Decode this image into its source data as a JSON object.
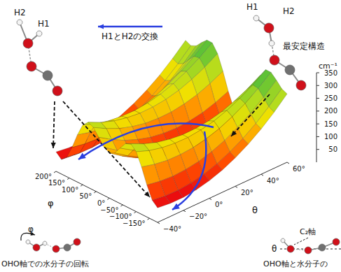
{
  "chart_data": {
    "type": "surface",
    "xlabel": "φ",
    "ylabel": "θ",
    "zlabel": "cm⁻¹",
    "x": [
      -180,
      -160,
      -140,
      -120,
      -100,
      -80,
      -60,
      -40,
      -20,
      0,
      20,
      40,
      60,
      80,
      100,
      120,
      140,
      160,
      180,
      200
    ],
    "y": [
      -40,
      -30,
      -20,
      -10,
      0,
      10,
      20,
      30,
      40,
      50,
      60
    ],
    "z": [
      [
        57,
        51,
        51,
        57,
        69,
        87,
        111,
        141,
        177,
        219,
        267
      ],
      [
        76,
        69,
        68,
        73,
        84,
        101,
        124,
        153,
        188,
        230,
        277
      ],
      [
        125,
        116,
        112,
        115,
        123,
        138,
        158,
        185,
        217,
        256,
        300
      ],
      [
        185,
        172,
        164,
        163,
        167,
        178,
        194,
        217,
        245,
        280,
        320
      ],
      [
        234,
        215,
        203,
        197,
        196,
        202,
        213,
        231,
        255,
        284,
        320
      ],
      [
        255,
        231,
        213,
        202,
        196,
        197,
        203,
        215,
        234,
        258,
        288
      ],
      [
        245,
        217,
        194,
        178,
        167,
        163,
        164,
        172,
        185,
        205,
        230
      ],
      [
        217,
        185,
        158,
        138,
        123,
        115,
        112,
        116,
        125,
        141,
        162
      ],
      [
        188,
        153,
        124,
        101,
        84,
        73,
        68,
        69,
        76,
        89,
        107
      ],
      [
        177,
        141,
        111,
        87,
        69,
        57,
        51,
        51,
        57,
        69,
        87
      ],
      [
        188,
        153,
        124,
        101,
        84,
        73,
        68,
        69,
        76,
        89,
        107
      ],
      [
        217,
        185,
        158,
        138,
        123,
        115,
        112,
        116,
        125,
        141,
        162
      ],
      [
        245,
        217,
        194,
        178,
        167,
        163,
        164,
        172,
        185,
        205,
        230
      ],
      [
        255,
        231,
        213,
        202,
        196,
        197,
        203,
        215,
        234,
        258,
        288
      ],
      [
        234,
        215,
        203,
        197,
        196,
        202,
        213,
        231,
        255,
        284,
        320
      ],
      [
        185,
        172,
        164,
        163,
        167,
        178,
        194,
        217,
        245,
        280,
        320
      ],
      [
        125,
        116,
        112,
        115,
        123,
        138,
        158,
        185,
        217,
        256,
        300
      ],
      [
        76,
        69,
        68,
        73,
        84,
        101,
        124,
        153,
        188,
        230,
        277
      ],
      [
        57,
        51,
        51,
        57,
        69,
        87,
        111,
        141,
        177,
        219,
        267
      ],
      [
        76,
        69,
        68,
        73,
        84,
        101,
        124,
        153,
        188,
        230,
        277
      ]
    ],
    "xlim": [
      -180,
      200
    ],
    "ylim": [
      -40,
      60
    ],
    "zlim": [
      0,
      350
    ],
    "xticks": [
      {
        "value": -150,
        "label": "−150°"
      },
      {
        "value": -100,
        "label": "−100°"
      },
      {
        "value": -50,
        "label": "−50°"
      },
      {
        "value": 0,
        "label": "0°"
      },
      {
        "value": 50,
        "label": "50°"
      },
      {
        "value": 100,
        "label": "100°"
      },
      {
        "value": 150,
        "label": "150°"
      },
      {
        "value": 200,
        "label": "200°"
      }
    ],
    "yticks": [
      {
        "value": -40,
        "label": "−40°"
      },
      {
        "value": -20,
        "label": "−20°"
      },
      {
        "value": 0,
        "label": "0°"
      },
      {
        "value": 20,
        "label": "20°"
      },
      {
        "value": 40,
        "label": "40°"
      },
      {
        "value": 60,
        "label": "60°"
      }
    ],
    "zticks": [
      50,
      100,
      150,
      200,
      250,
      300,
      350
    ],
    "annotations": [
      "H2",
      "H1",
      "H1とH2の交換",
      "H1",
      "H2",
      "最安定構造",
      "φ",
      "OHO軸での水分子の回転",
      "C₂軸",
      "θ",
      "OHO軸と水分子の"
    ]
  }
}
